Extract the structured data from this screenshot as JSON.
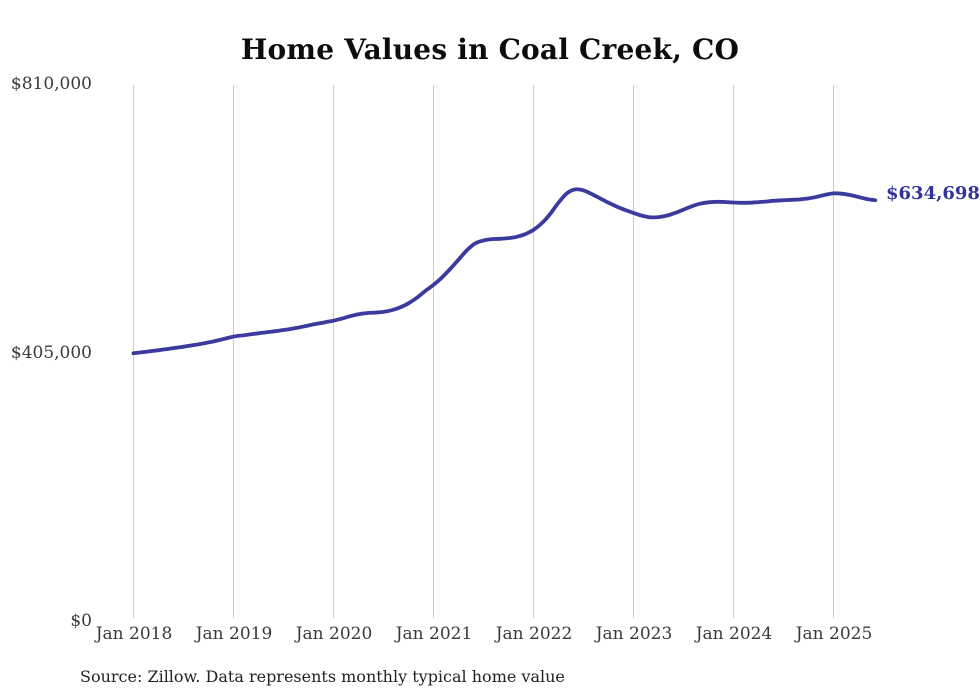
{
  "title": "Home Values in Coal Creek, CO",
  "source_note": "Source: Zillow. Data represents monthly typical home value",
  "end_label": "$634,698",
  "colors": {
    "line": "#3a3a9f",
    "end_label": "#32329b",
    "grid": "#cccccc",
    "axis_text": "#3a3a3a",
    "title_text": "#0d0d0d"
  },
  "chart_data": {
    "type": "line",
    "title": "Home Values in Coal Creek, CO",
    "xlabel": "",
    "ylabel": "",
    "legend": "none",
    "grid": "vertical-only",
    "ylim": [
      0,
      810000
    ],
    "y_tick_labels": [
      "$810,000",
      "$405,000",
      "$0"
    ],
    "y_tick_values": [
      810000,
      405000,
      0
    ],
    "x_tick_labels": [
      "Jan 2018",
      "Jan 2019",
      "Jan 2020",
      "Jan 2021",
      "Jan 2022",
      "Jan 2023",
      "Jan 2024",
      "Jan 2025"
    ],
    "x_unit": "month",
    "x_range": [
      "Jan 2018",
      "Jun 2025"
    ],
    "end_value": 634698,
    "series": [
      {
        "name": "Typical home value",
        "values": [
          404000,
          405400,
          406900,
          408500,
          410200,
          412000,
          413800,
          415700,
          417800,
          420200,
          422900,
          425900,
          429000,
          430700,
          432300,
          434000,
          435600,
          437200,
          438900,
          440900,
          443200,
          445800,
          448300,
          450700,
          453000,
          456200,
          459800,
          462800,
          464500,
          465200,
          466300,
          468800,
          473000,
          479200,
          487500,
          497800,
          507000,
          518000,
          531000,
          545000,
          559000,
          569500,
          574000,
          576000,
          576500,
          577500,
          579500,
          583500,
          590000,
          600000,
          614000,
          631000,
          645000,
          651000,
          649500,
          644000,
          637500,
          631000,
          625000,
          620000,
          615500,
          611500,
          609000,
          609300,
          611500,
          615500,
          620500,
          625500,
          629500,
          631500,
          632300,
          632000,
          631300,
          630800,
          631000,
          631800,
          632800,
          634000,
          634800,
          635300,
          636000,
          637500,
          639800,
          642800,
          645000,
          644500,
          642500,
          639500,
          636500,
          634698
        ]
      }
    ]
  }
}
